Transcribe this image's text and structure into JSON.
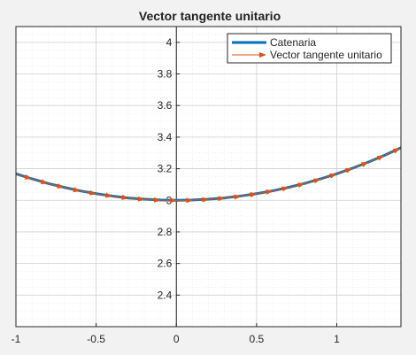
{
  "chart_data": {
    "type": "line",
    "title": "Vector tangente unitario",
    "xlabel": "",
    "ylabel": "",
    "xlim": [
      -1,
      1.4
    ],
    "ylim": [
      2.2,
      4.1
    ],
    "xticks": [
      -1,
      -0.5,
      0,
      0.5,
      1
    ],
    "xtick_labels": [
      "-1",
      "-0.5",
      "0",
      "0.5",
      "1"
    ],
    "yticks": [
      2.4,
      2.6,
      2.8,
      3.0,
      3.2,
      3.4,
      3.6,
      3.8,
      4.0
    ],
    "ytick_labels": [
      "2.4",
      "2.6",
      "2.8",
      "3",
      "3.2",
      "3.4",
      "3.6",
      "3.8",
      "4"
    ],
    "grid": true,
    "minor_grid": true,
    "legend_position": "top-right",
    "series": [
      {
        "name": "Catenaria",
        "kind": "line",
        "color": "#0072BD",
        "function": "y = 3*cosh(x/3)",
        "x": [
          -1,
          -0.9,
          -0.8,
          -0.7,
          -0.6,
          -0.5,
          -0.4,
          -0.3,
          -0.2,
          -0.1,
          0,
          0.1,
          0.2,
          0.3,
          0.4,
          0.5,
          0.6,
          0.7,
          0.8,
          0.9,
          1.0,
          1.1,
          1.2,
          1.3,
          1.4
        ],
        "y": [
          3.168,
          3.136,
          3.107,
          3.082,
          3.06,
          3.042,
          3.027,
          3.015,
          3.007,
          3.002,
          3.0,
          3.002,
          3.007,
          3.015,
          3.027,
          3.042,
          3.06,
          3.082,
          3.107,
          3.136,
          3.168,
          3.204,
          3.243,
          3.286,
          3.333
        ]
      },
      {
        "name": "Vector tangente unitario",
        "kind": "quiver",
        "color": "#D95319",
        "x": [
          -1,
          -0.9,
          -0.8,
          -0.7,
          -0.6,
          -0.5,
          -0.4,
          -0.3,
          -0.2,
          -0.1,
          0,
          0.1,
          0.2,
          0.3,
          0.4,
          0.5,
          0.6,
          0.7,
          0.8,
          0.9,
          1.0,
          1.1,
          1.2,
          1.3
        ],
        "y": [
          3.168,
          3.136,
          3.107,
          3.082,
          3.06,
          3.042,
          3.027,
          3.015,
          3.007,
          3.002,
          3.0,
          3.002,
          3.007,
          3.015,
          3.027,
          3.042,
          3.06,
          3.082,
          3.107,
          3.136,
          3.168,
          3.204,
          3.243,
          3.286
        ]
      }
    ]
  }
}
